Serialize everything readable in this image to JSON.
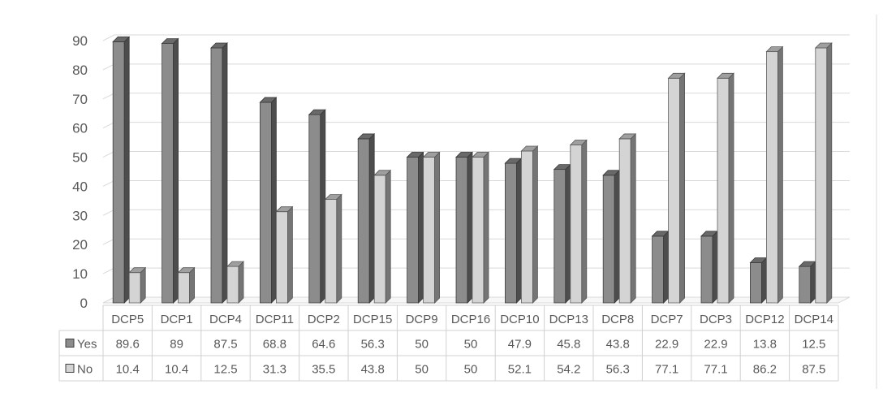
{
  "chart_data": {
    "type": "bar",
    "style": "3d-clustered-column-with-data-table",
    "categories": [
      "DCP5",
      "DCP1",
      "DCP4",
      "DCP11",
      "DCP2",
      "DCP15",
      "DCP9",
      "DCP16",
      "DCP10",
      "DCP13",
      "DCP8",
      "DCP7",
      "DCP3",
      "DCP12",
      "DCP14"
    ],
    "series": [
      {
        "name": "Yes",
        "color": "#8c8c8c",
        "values": [
          89.6,
          89,
          87.5,
          68.8,
          64.6,
          56.3,
          50,
          50,
          47.9,
          45.8,
          43.8,
          22.9,
          22.9,
          13.8,
          12.5
        ]
      },
      {
        "name": "No",
        "color": "#d4d4d4",
        "values": [
          10.4,
          10.4,
          12.5,
          31.3,
          35.5,
          43.8,
          50,
          50,
          52.1,
          54.2,
          56.3,
          77.1,
          77.1,
          86.2,
          87.5
        ]
      }
    ],
    "title": "",
    "xlabel": "",
    "ylabel": "",
    "ylim": [
      0,
      90
    ],
    "yticks": [
      0,
      10,
      20,
      30,
      40,
      50,
      60,
      70,
      80,
      90
    ],
    "grid": true,
    "legend": "data-table",
    "table_display": {
      "Yes": [
        "89.6",
        "89",
        "87.5",
        "68.8",
        "64.6",
        "56.3",
        "50",
        "50",
        "47.9",
        "45.8",
        "43.8",
        "22.9",
        "22.9",
        "13.8",
        "12.5"
      ],
      "No": [
        "10.4",
        "10.4",
        "12.5",
        "31.3",
        "35.5",
        "43.8",
        "50",
        "50",
        "52.1",
        "54.2",
        "56.3",
        "77.1",
        "77.1",
        "86.2",
        "87.5"
      ]
    }
  }
}
